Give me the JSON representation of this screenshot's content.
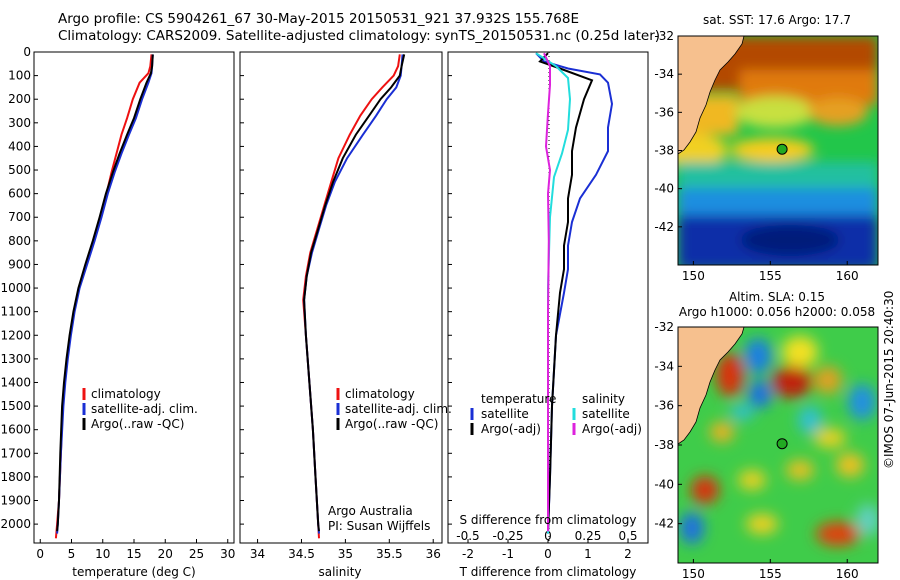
{
  "title": {
    "line1": "Argo profile: CS 5904261_67 30-May-2015 20150531_921 37.932S 155.768E",
    "line2": "Climatology: CARS2009. Satellite-adjusted climatology: synTS_20150531.nc (0.25d later)"
  },
  "watermark": "©IMOS 07-Jun-2015 20:40:30",
  "annotation": {
    "line1": "Argo Australia",
    "line2": "PI: Susan Wijffels"
  },
  "colors": {
    "climatology": "#ee1111",
    "satellite": "#1a2fd4",
    "argo": "#000000",
    "sat_salinity": "#22dddd",
    "argo_salinity": "#dd22dd",
    "land": "#f6c08e"
  },
  "chart_data": [
    {
      "type": "line",
      "panel": "temperature",
      "xlabel": "temperature (deg C)",
      "ylabel": "",
      "xlim": [
        -1,
        31
      ],
      "ylim": [
        2080,
        0
      ],
      "y_inverted": true,
      "xticks": [
        0,
        5,
        10,
        15,
        20,
        25,
        30
      ],
      "yticks": [
        0,
        100,
        200,
        300,
        400,
        500,
        600,
        700,
        800,
        900,
        1000,
        1100,
        1200,
        1300,
        1400,
        1500,
        1600,
        1700,
        1800,
        1900,
        2000
      ],
      "legend": [
        "climatology",
        "satellite-adj. clim.",
        "Argo(..raw -QC)"
      ],
      "legend_position": "lower-center",
      "series": [
        {
          "name": "climatology",
          "color": "#ee1111",
          "points": [
            [
              17.8,
              10
            ],
            [
              17.6,
              60
            ],
            [
              17.3,
              90
            ],
            [
              15.9,
              130
            ],
            [
              14.8,
              200
            ],
            [
              13.9,
              280
            ],
            [
              13.0,
              350
            ],
            [
              12.2,
              430
            ],
            [
              11.4,
              510
            ],
            [
              10.6,
              600
            ],
            [
              9.7,
              700
            ],
            [
              8.6,
              800
            ],
            [
              7.4,
              900
            ],
            [
              6.2,
              1000
            ],
            [
              5.4,
              1100
            ],
            [
              4.8,
              1200
            ],
            [
              4.3,
              1300
            ],
            [
              3.9,
              1400
            ],
            [
              3.6,
              1500
            ],
            [
              3.3,
              1700
            ],
            [
              3.0,
              1900
            ],
            [
              2.7,
              2000
            ],
            [
              2.5,
              2060
            ]
          ]
        },
        {
          "name": "satellite-adj. clim.",
          "color": "#1a2fd4",
          "points": [
            [
              18.0,
              10
            ],
            [
              17.9,
              60
            ],
            [
              17.8,
              90
            ],
            [
              17.3,
              130
            ],
            [
              16.3,
              200
            ],
            [
              15.3,
              280
            ],
            [
              14.2,
              350
            ],
            [
              13.0,
              430
            ],
            [
              11.9,
              510
            ],
            [
              10.8,
              600
            ],
            [
              9.8,
              700
            ],
            [
              8.7,
              800
            ],
            [
              7.5,
              900
            ],
            [
              6.3,
              1000
            ],
            [
              5.5,
              1100
            ],
            [
              4.9,
              1200
            ],
            [
              4.4,
              1300
            ],
            [
              4.0,
              1400
            ],
            [
              3.7,
              1500
            ],
            [
              3.3,
              1700
            ],
            [
              3.0,
              1900
            ],
            [
              2.8,
              2000
            ],
            [
              2.7,
              2040
            ]
          ]
        },
        {
          "name": "Argo(..raw -QC)",
          "color": "#000000",
          "points": [
            [
              18.0,
              10
            ],
            [
              17.9,
              60
            ],
            [
              17.7,
              90
            ],
            [
              17.0,
              130
            ],
            [
              16.0,
              200
            ],
            [
              15.0,
              280
            ],
            [
              13.9,
              350
            ],
            [
              12.7,
              430
            ],
            [
              11.6,
              510
            ],
            [
              10.5,
              600
            ],
            [
              9.5,
              700
            ],
            [
              8.4,
              800
            ],
            [
              7.2,
              900
            ],
            [
              6.1,
              1000
            ],
            [
              5.3,
              1100
            ],
            [
              4.7,
              1200
            ],
            [
              4.2,
              1300
            ],
            [
              3.8,
              1400
            ],
            [
              3.5,
              1500
            ],
            [
              3.2,
              1700
            ],
            [
              3.0,
              1900
            ],
            [
              2.8,
              2000
            ],
            [
              2.7,
              2030
            ]
          ]
        }
      ]
    },
    {
      "type": "line",
      "panel": "salinity",
      "xlabel": "salinity",
      "ylabel": "",
      "xlim": [
        33.8,
        36.1
      ],
      "ylim": [
        2080,
        0
      ],
      "y_inverted": true,
      "xticks": [
        34,
        34.5,
        35,
        35.5,
        36
      ],
      "legend": [
        "climatology",
        "satellite-adj. clim.",
        "Argo(..raw -QC)"
      ],
      "legend_position": "lower-right",
      "series": [
        {
          "name": "climatology",
          "color": "#ee1111",
          "points": [
            [
              35.62,
              10
            ],
            [
              35.6,
              60
            ],
            [
              35.55,
              100
            ],
            [
              35.42,
              150
            ],
            [
              35.3,
              200
            ],
            [
              35.17,
              270
            ],
            [
              35.05,
              350
            ],
            [
              34.92,
              450
            ],
            [
              34.84,
              550
            ],
            [
              34.76,
              650
            ],
            [
              34.68,
              750
            ],
            [
              34.6,
              850
            ],
            [
              34.55,
              950
            ],
            [
              34.52,
              1050
            ],
            [
              34.55,
              1200
            ],
            [
              34.59,
              1400
            ],
            [
              34.63,
              1600
            ],
            [
              34.66,
              1800
            ],
            [
              34.69,
              2000
            ],
            [
              34.7,
              2060
            ]
          ]
        },
        {
          "name": "satellite-adj. clim.",
          "color": "#1a2fd4",
          "points": [
            [
              35.65,
              10
            ],
            [
              35.64,
              60
            ],
            [
              35.63,
              100
            ],
            [
              35.58,
              150
            ],
            [
              35.47,
              200
            ],
            [
              35.35,
              270
            ],
            [
              35.2,
              350
            ],
            [
              35.02,
              450
            ],
            [
              34.88,
              550
            ],
            [
              34.78,
              650
            ],
            [
              34.7,
              750
            ],
            [
              34.62,
              850
            ],
            [
              34.56,
              950
            ],
            [
              34.53,
              1050
            ],
            [
              34.55,
              1200
            ],
            [
              34.59,
              1400
            ],
            [
              34.63,
              1600
            ],
            [
              34.66,
              1800
            ],
            [
              34.69,
              2000
            ],
            [
              34.7,
              2040
            ]
          ]
        },
        {
          "name": "Argo(..raw -QC)",
          "color": "#000000",
          "points": [
            [
              35.67,
              10
            ],
            [
              35.64,
              60
            ],
            [
              35.62,
              100
            ],
            [
              35.52,
              150
            ],
            [
              35.4,
              200
            ],
            [
              35.27,
              270
            ],
            [
              35.12,
              350
            ],
            [
              34.97,
              450
            ],
            [
              34.86,
              550
            ],
            [
              34.77,
              650
            ],
            [
              34.69,
              750
            ],
            [
              34.61,
              850
            ],
            [
              34.56,
              950
            ],
            [
              34.53,
              1050
            ],
            [
              34.55,
              1200
            ],
            [
              34.59,
              1400
            ],
            [
              34.63,
              1600
            ],
            [
              34.66,
              1800
            ],
            [
              34.69,
              2000
            ],
            [
              34.7,
              2030
            ]
          ]
        }
      ]
    },
    {
      "type": "line",
      "panel": "difference",
      "xlabel": "T difference from climatology",
      "xlabel_top": "S difference from climatology",
      "xlim": [
        -2.5,
        2.5
      ],
      "ylim": [
        2080,
        0
      ],
      "y_inverted": true,
      "xticks": [
        -2,
        -1,
        0,
        1,
        2
      ],
      "xticks_s": [
        "-0.5",
        "-0.25",
        "0",
        "0.25",
        "0.5"
      ],
      "legend_temperature": {
        "header": "temperature",
        "items": [
          "satellite",
          "Argo(-adj)"
        ]
      },
      "legend_salinity": {
        "header": "salinity",
        "items": [
          "satellite",
          "Argo(-adj)"
        ]
      },
      "series": [
        {
          "name": "T satellite",
          "color": "#1a2fd4",
          "points": [
            [
              -0.3,
              5
            ],
            [
              -0.1,
              40
            ],
            [
              0.5,
              70
            ],
            [
              1.3,
              95
            ],
            [
              1.5,
              130
            ],
            [
              1.6,
              220
            ],
            [
              1.5,
              320
            ],
            [
              1.5,
              420
            ],
            [
              1.2,
              520
            ],
            [
              0.8,
              620
            ],
            [
              0.6,
              720
            ],
            [
              0.5,
              820
            ],
            [
              0.5,
              920
            ],
            [
              0.4,
              1020
            ],
            [
              0.2,
              1200
            ],
            [
              0.1,
              1500
            ],
            [
              0.05,
              1800
            ],
            [
              0.0,
              2040
            ]
          ]
        },
        {
          "name": "T Argo(-adj)",
          "color": "#000000",
          "points": [
            [
              0.0,
              5
            ],
            [
              -0.2,
              40
            ],
            [
              0.3,
              70
            ],
            [
              1.1,
              120
            ],
            [
              0.9,
              200
            ],
            [
              0.7,
              320
            ],
            [
              0.6,
              420
            ],
            [
              0.6,
              520
            ],
            [
              0.5,
              620
            ],
            [
              0.5,
              720
            ],
            [
              0.4,
              820
            ],
            [
              0.4,
              920
            ],
            [
              0.3,
              1020
            ],
            [
              0.2,
              1200
            ],
            [
              0.1,
              1500
            ],
            [
              0.05,
              1800
            ],
            [
              0.0,
              2030
            ]
          ]
        },
        {
          "name": "S satellite",
          "color": "#22dddd",
          "points": [
            [
              -0.3,
              5
            ],
            [
              0.2,
              60
            ],
            [
              0.5,
              110
            ],
            [
              0.55,
              200
            ],
            [
              0.5,
              330
            ],
            [
              0.35,
              430
            ],
            [
              0.15,
              530
            ],
            [
              0.05,
              700
            ],
            [
              0.0,
              1000
            ],
            [
              0.0,
              1500
            ],
            [
              0.0,
              2040
            ]
          ]
        },
        {
          "name": "S Argo(-adj)",
          "color": "#dd22dd",
          "points": [
            [
              -0.1,
              5
            ],
            [
              0.05,
              60
            ],
            [
              0.05,
              140
            ],
            [
              0.0,
              260
            ],
            [
              -0.05,
              400
            ],
            [
              0.05,
              500
            ],
            [
              0.0,
              600
            ],
            [
              0.02,
              800
            ],
            [
              0.0,
              1100
            ],
            [
              0.0,
              1500
            ],
            [
              0.0,
              2030
            ]
          ]
        }
      ]
    },
    {
      "type": "heatmap",
      "panel": "sst_map",
      "title": "sat. SST: 17.6 Argo: 17.7",
      "xlim": [
        149,
        162
      ],
      "ylim": [
        -44,
        -32
      ],
      "xticks": [
        150,
        155,
        160
      ],
      "yticks": [
        -32,
        -34,
        -36,
        -38,
        -40,
        -42
      ],
      "marker": {
        "lon": 155.768,
        "lat": -37.932
      }
    },
    {
      "type": "heatmap",
      "panel": "sla_map",
      "title": "Altim. SLA: 0.15",
      "subtitle": "Argo h1000: 0.056 h2000: 0.058",
      "xlim": [
        149,
        162
      ],
      "ylim": [
        -44,
        -32
      ],
      "xticks": [
        150,
        155,
        160
      ],
      "yticks": [
        -32,
        -34,
        -36,
        -38,
        -40,
        -42
      ],
      "marker": {
        "lon": 155.768,
        "lat": -37.932
      }
    }
  ]
}
